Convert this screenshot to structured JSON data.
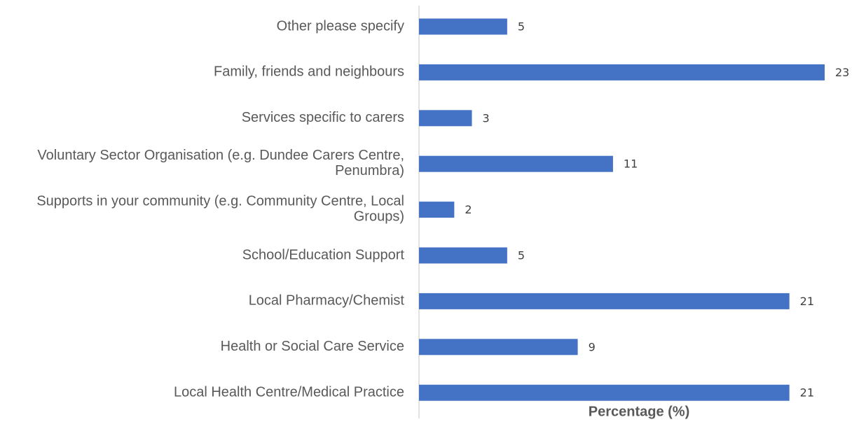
{
  "chart_data": {
    "type": "bar",
    "orientation": "horizontal",
    "categories": [
      "Other please specify",
      "Family, friends and neighbours",
      "Services specific to carers",
      "Voluntary Sector Organisation (e.g. Dundee Carers Centre, Penumbra)",
      "Supports in your community (e.g. Community Centre, Local Groups)",
      "School/Education Support",
      "Local Pharmacy/Chemist",
      "Health or Social Care Service",
      "Local Health Centre/Medical Practice"
    ],
    "values": [
      5,
      23,
      3,
      11,
      2,
      5,
      21,
      9,
      21
    ],
    "color": "#4472c4",
    "xlabel": "Percentage (%)"
  }
}
